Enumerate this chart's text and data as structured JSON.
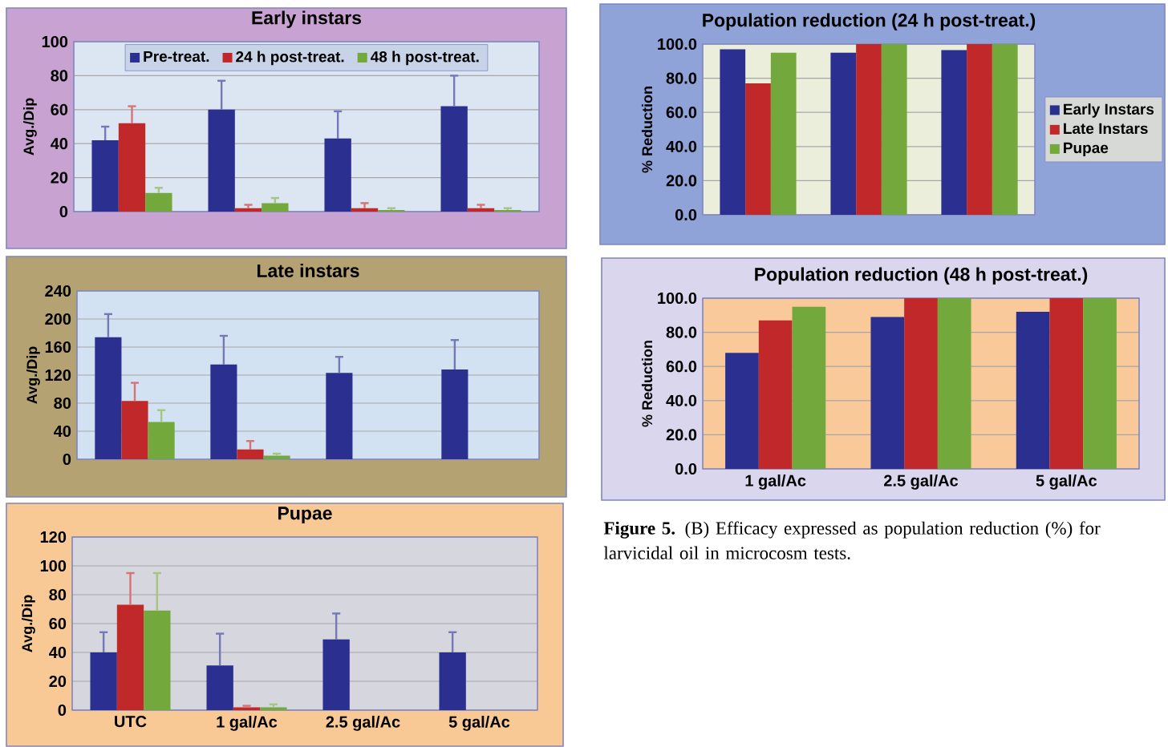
{
  "chart_data": [
    {
      "type": "bar",
      "title": "Early instars",
      "ylabel": "Avg./Dip",
      "categories": [
        null,
        null,
        null,
        null
      ],
      "ylim": [
        0,
        100
      ],
      "yticks": [
        0,
        20,
        40,
        60,
        80,
        100
      ],
      "grid": "y",
      "legend": "top",
      "tick_labels": "y",
      "series": [
        {
          "name": "Pre-treat.",
          "color": "#2b2f8f",
          "values": [
            42,
            60,
            43,
            62
          ],
          "errors": [
            [
              42,
              50
            ],
            [
              60,
              77
            ],
            [
              43,
              59
            ],
            [
              62,
              80
            ]
          ]
        },
        {
          "name": "24 h post-treat.",
          "color": "#c0282a",
          "values": [
            52,
            2,
            2,
            2
          ],
          "errors": [
            [
              52,
              62
            ],
            [
              2,
              4
            ],
            [
              2,
              5
            ],
            [
              2,
              4
            ]
          ]
        },
        {
          "name": "48 h post-treat.",
          "color": "#73a83c",
          "values": [
            11,
            5,
            1,
            1
          ],
          "errors": [
            [
              11,
              14
            ],
            [
              5,
              8
            ],
            [
              1,
              2
            ],
            [
              1,
              2
            ]
          ]
        }
      ]
    },
    {
      "type": "bar",
      "title": "Late instars",
      "ylabel": "Avg./Dip",
      "categories": [
        null,
        null,
        null,
        null
      ],
      "ylim": [
        0,
        240
      ],
      "yticks": [
        0,
        40,
        80,
        120,
        160,
        200,
        240
      ],
      "grid": "y",
      "tick_labels": "y",
      "series": [
        {
          "color": "#2b2f8f",
          "values": [
            174,
            135,
            123,
            128
          ],
          "errors": [
            [
              174,
              207
            ],
            [
              135,
              176
            ],
            [
              123,
              146
            ],
            [
              128,
              170
            ]
          ]
        },
        {
          "color": "#c0282a",
          "values": [
            83,
            14,
            0,
            0
          ],
          "errors": [
            [
              83,
              109
            ],
            [
              14,
              26
            ],
            null,
            null
          ]
        },
        {
          "color": "#73a83c",
          "values": [
            53,
            5,
            0,
            0
          ],
          "errors": [
            [
              53,
              70
            ],
            [
              5,
              8
            ],
            null,
            null
          ]
        }
      ]
    },
    {
      "type": "bar",
      "title": "Pupae",
      "ylabel": "Avg./Dip",
      "categories": [
        "UTC",
        "1 gal/Ac",
        "2.5 gal/Ac",
        "5 gal/Ac"
      ],
      "ylim": [
        0,
        120
      ],
      "yticks": [
        0,
        20,
        40,
        60,
        80,
        100,
        120
      ],
      "grid": "y",
      "series": [
        {
          "color": "#2b2f8f",
          "values": [
            40,
            31,
            49,
            40
          ],
          "errors": [
            [
              40,
              54
            ],
            [
              31,
              53
            ],
            [
              49,
              67
            ],
            [
              40,
              54
            ]
          ]
        },
        {
          "color": "#c0282a",
          "values": [
            73,
            2,
            0,
            0
          ],
          "errors": [
            [
              73,
              95
            ],
            [
              2,
              3
            ],
            null,
            null
          ]
        },
        {
          "color": "#73a83c",
          "values": [
            69,
            2,
            0,
            0
          ],
          "errors": [
            [
              69,
              95
            ],
            [
              2,
              4
            ],
            null,
            null
          ]
        }
      ]
    },
    {
      "type": "bar",
      "title": "Population reduction (24 h post-treat.)",
      "ylabel": "% Reduction",
      "categories": [
        null,
        null,
        null
      ],
      "ylim": [
        0,
        100
      ],
      "yticks": [
        {
          "value": 0,
          "label": "0.0"
        },
        {
          "value": 20,
          "label": "20.0"
        },
        {
          "value": 40,
          "label": "40.0"
        },
        {
          "value": 60,
          "label": "60.0"
        },
        {
          "value": 80,
          "label": "80.0"
        },
        {
          "value": 100,
          "label": "100.0"
        }
      ],
      "grid": "y",
      "legend": "right",
      "tick_labels": "y",
      "series": [
        {
          "name": "Early Instars",
          "color": "#2b2f8f",
          "values": [
            97,
            95,
            96.5
          ]
        },
        {
          "name": "Late Instars",
          "color": "#c0282a",
          "values": [
            77,
            100,
            100
          ]
        },
        {
          "name": "Pupae",
          "color": "#73a83c",
          "values": [
            95,
            100,
            100
          ]
        }
      ]
    },
    {
      "type": "bar",
      "title": "Population reduction (48 h post-treat.)",
      "ylabel": "% Reduction",
      "categories": [
        "1 gal/Ac",
        "2.5 gal/Ac",
        "5 gal/Ac"
      ],
      "ylim": [
        0,
        100
      ],
      "yticks": [
        {
          "value": 0,
          "label": "0.0"
        },
        {
          "value": 20,
          "label": "20.0"
        },
        {
          "value": 40,
          "label": "40.0"
        },
        {
          "value": 60,
          "label": "60.0"
        },
        {
          "value": 80,
          "label": "80.0"
        },
        {
          "value": 100,
          "label": "100.0"
        }
      ],
      "grid": "y",
      "annotations": [
        "**Figure 5.** (B) Efficacy expressed as population reduction (%) for larvicidal oil in microcosm tests."
      ],
      "series": [
        {
          "color": "#2b2f8f",
          "values": [
            68,
            89,
            92
          ]
        },
        {
          "color": "#c0282a",
          "values": [
            87,
            100,
            100
          ]
        },
        {
          "color": "#73a83c",
          "values": [
            95,
            100,
            100
          ]
        }
      ]
    }
  ]
}
